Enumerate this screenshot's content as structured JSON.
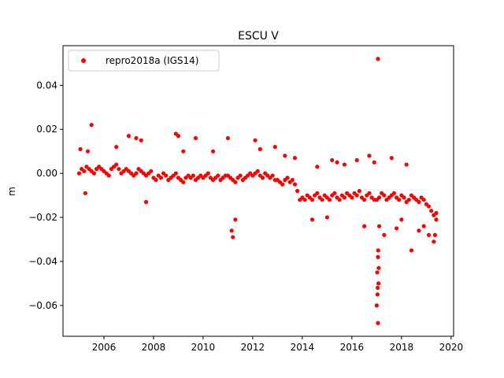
{
  "chart_data": {
    "type": "scatter",
    "title": "ESCU V",
    "xlabel": "",
    "ylabel": "m",
    "xlim": [
      2004.35,
      2020.1
    ],
    "ylim": [
      -0.074,
      0.058
    ],
    "x_ticks": [
      2006,
      2008,
      2010,
      2012,
      2014,
      2016,
      2018,
      2020
    ],
    "y_ticks": [
      -0.06,
      -0.04,
      -0.02,
      0.0,
      0.02,
      0.04
    ],
    "y_tick_labels": [
      "−0.06",
      "−0.04",
      "−0.02",
      "0.00",
      "0.02",
      "0.04"
    ],
    "grid": false,
    "legend_position": "top-left",
    "series": [
      {
        "name": "repro2018a (IGS14)",
        "color": "#ff0000",
        "marker": "circle",
        "x": [
          2005.0,
          2005.1,
          2005.2,
          2005.3,
          2005.4,
          2005.5,
          2005.6,
          2005.7,
          2005.8,
          2005.9,
          2006.0,
          2006.1,
          2006.2,
          2006.3,
          2006.4,
          2006.5,
          2006.6,
          2006.7,
          2006.8,
          2006.9,
          2007.0,
          2007.1,
          2007.2,
          2007.3,
          2007.4,
          2007.5,
          2007.6,
          2007.7,
          2007.8,
          2007.9,
          2008.0,
          2008.1,
          2008.2,
          2008.3,
          2008.4,
          2008.5,
          2008.6,
          2008.7,
          2008.8,
          2008.9,
          2009.0,
          2009.1,
          2009.2,
          2009.3,
          2009.4,
          2009.5,
          2009.6,
          2009.7,
          2009.8,
          2009.9,
          2010.0,
          2010.1,
          2010.2,
          2010.3,
          2010.4,
          2010.5,
          2010.6,
          2010.7,
          2010.8,
          2010.9,
          2011.0,
          2011.1,
          2011.2,
          2011.3,
          2011.4,
          2011.5,
          2011.6,
          2011.7,
          2011.8,
          2011.9,
          2012.0,
          2012.1,
          2012.2,
          2012.3,
          2012.4,
          2012.5,
          2012.6,
          2012.7,
          2012.8,
          2012.9,
          2013.0,
          2013.1,
          2013.2,
          2013.3,
          2013.4,
          2013.5,
          2013.6,
          2013.7,
          2013.8,
          2013.9,
          2014.0,
          2014.1,
          2014.2,
          2014.3,
          2014.4,
          2014.5,
          2014.6,
          2014.7,
          2014.8,
          2014.9,
          2015.0,
          2015.1,
          2015.2,
          2015.3,
          2015.4,
          2015.5,
          2015.6,
          2015.7,
          2015.8,
          2015.9,
          2016.0,
          2016.1,
          2016.2,
          2016.3,
          2016.4,
          2016.5,
          2016.6,
          2016.7,
          2016.8,
          2016.9,
          2017.0,
          2017.1,
          2017.2,
          2017.3,
          2017.4,
          2017.5,
          2017.6,
          2017.7,
          2017.8,
          2017.9,
          2018.0,
          2018.1,
          2018.2,
          2018.3,
          2018.4,
          2018.5,
          2018.6,
          2018.7,
          2018.8,
          2018.9,
          2019.0,
          2019.1,
          2019.2,
          2019.3,
          2019.4,
          2005.05,
          2005.5,
          2005.25,
          2005.35,
          2006.5,
          2007.0,
          2007.3,
          2007.5,
          2007.7,
          2008.9,
          2009.0,
          2009.2,
          2009.7,
          2010.4,
          2011.0,
          2011.15,
          2011.2,
          2011.3,
          2012.1,
          2012.3,
          2012.9,
          2013.3,
          2013.7,
          2014.4,
          2014.6,
          2015.0,
          2015.2,
          2015.4,
          2015.7,
          2016.2,
          2016.5,
          2016.7,
          2016.9,
          2017.0,
          2017.02,
          2017.04,
          2017.06,
          2017.03,
          2017.05,
          2017.07,
          2017.08,
          2017.1,
          2017.05,
          2017.05,
          2017.3,
          2017.6,
          2017.8,
          2018.0,
          2018.2,
          2018.4,
          2018.7,
          2018.9,
          2019.1,
          2019.3,
          2019.35,
          2019.4
        ],
        "y": [
          0.0,
          0.002,
          0.001,
          0.003,
          0.002,
          0.001,
          0.0,
          0.002,
          0.003,
          0.002,
          0.001,
          0.0,
          -0.001,
          0.002,
          0.003,
          0.004,
          0.002,
          0.0,
          0.001,
          0.002,
          0.001,
          0.0,
          -0.001,
          0.0,
          0.002,
          0.001,
          0.0,
          -0.001,
          0.0,
          0.001,
          -0.002,
          -0.003,
          -0.001,
          -0.002,
          0.0,
          -0.001,
          -0.003,
          -0.002,
          -0.001,
          0.0,
          -0.002,
          -0.003,
          -0.004,
          -0.002,
          -0.001,
          -0.002,
          -0.001,
          -0.003,
          -0.002,
          -0.001,
          -0.002,
          -0.001,
          0.0,
          -0.002,
          -0.003,
          -0.002,
          -0.001,
          -0.003,
          -0.002,
          -0.001,
          -0.001,
          -0.002,
          -0.003,
          -0.004,
          -0.002,
          -0.001,
          -0.003,
          -0.002,
          -0.001,
          0.0,
          -0.001,
          0.0,
          0.001,
          -0.001,
          -0.002,
          0.0,
          -0.001,
          -0.002,
          -0.001,
          -0.003,
          -0.003,
          -0.004,
          -0.005,
          -0.003,
          -0.002,
          -0.004,
          -0.003,
          -0.005,
          -0.008,
          -0.012,
          -0.011,
          -0.012,
          -0.01,
          -0.011,
          -0.012,
          -0.01,
          -0.009,
          -0.011,
          -0.012,
          -0.01,
          -0.011,
          -0.012,
          -0.01,
          -0.009,
          -0.011,
          -0.012,
          -0.01,
          -0.011,
          -0.009,
          -0.01,
          -0.011,
          -0.009,
          -0.01,
          -0.008,
          -0.011,
          -0.012,
          -0.01,
          -0.009,
          -0.011,
          -0.012,
          -0.012,
          -0.011,
          -0.009,
          -0.01,
          -0.012,
          -0.011,
          -0.01,
          -0.009,
          -0.011,
          -0.012,
          -0.01,
          -0.011,
          -0.013,
          -0.012,
          -0.01,
          -0.011,
          -0.012,
          -0.013,
          -0.011,
          -0.012,
          -0.014,
          -0.015,
          -0.017,
          -0.019,
          -0.018,
          0.011,
          0.022,
          -0.009,
          0.01,
          0.012,
          0.017,
          0.016,
          0.015,
          -0.013,
          0.018,
          0.017,
          0.01,
          0.016,
          0.01,
          0.016,
          -0.026,
          -0.029,
          -0.021,
          0.015,
          0.011,
          0.012,
          0.008,
          0.007,
          -0.021,
          0.003,
          -0.02,
          0.006,
          0.005,
          0.004,
          0.006,
          -0.024,
          0.008,
          0.005,
          -0.06,
          -0.045,
          -0.052,
          -0.035,
          -0.055,
          -0.038,
          -0.05,
          -0.043,
          -0.024,
          0.052,
          -0.068,
          -0.028,
          0.007,
          -0.025,
          -0.021,
          0.004,
          -0.035,
          -0.026,
          -0.024,
          -0.028,
          -0.031,
          -0.028,
          -0.021
        ]
      }
    ]
  }
}
